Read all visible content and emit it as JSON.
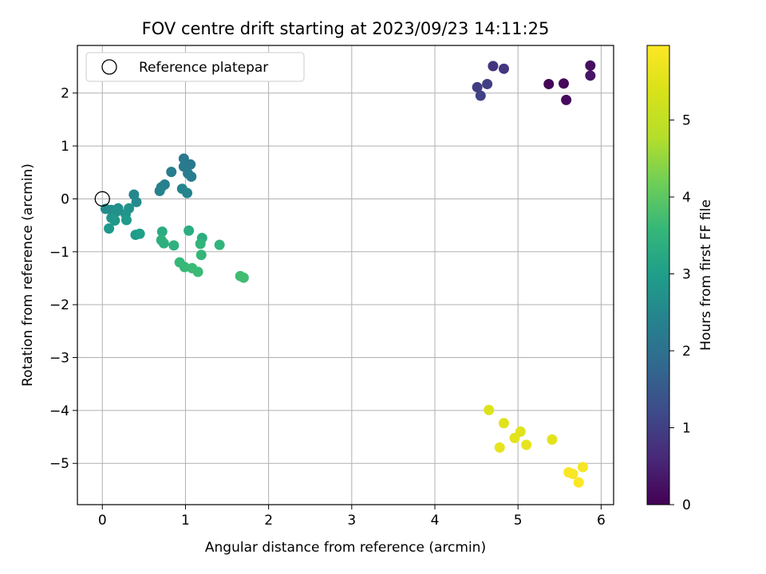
{
  "chart_data": {
    "type": "scatter",
    "title": "FOV centre drift starting at 2023/09/23 14:11:25",
    "xlabel": "Angular distance from reference (arcmin)",
    "ylabel": "Rotation from reference (arcmin)",
    "xlim": [
      -0.3,
      6.15
    ],
    "ylim": [
      -5.78,
      2.9
    ],
    "xticks": [
      0,
      1,
      2,
      3,
      4,
      5,
      6
    ],
    "xtick_labels": [
      "0",
      "1",
      "2",
      "3",
      "4",
      "5",
      "6"
    ],
    "yticks": [
      2,
      1,
      0,
      -1,
      -2,
      -3,
      -4,
      -5
    ],
    "ytick_labels": [
      "2",
      "1",
      "0",
      "−1",
      "−2",
      "−3",
      "−4",
      "−5"
    ],
    "grid": true,
    "legend": {
      "placement": "upper-left",
      "entries": [
        {
          "label": "Reference platepar",
          "marker": "open-circle"
        }
      ]
    },
    "reference_point": {
      "x": 0,
      "y": 0
    },
    "colorbar": {
      "label": "Hours from first FF file",
      "colormap": "viridis",
      "range": [
        0,
        5.97
      ],
      "ticks": [
        0,
        1,
        2,
        3,
        4,
        5
      ],
      "tick_labels": [
        "0",
        "1",
        "2",
        "3",
        "4",
        "5"
      ]
    },
    "points": [
      {
        "x": 5.37,
        "y": 2.17,
        "c": 0.05
      },
      {
        "x": 5.55,
        "y": 2.18,
        "c": 0.1
      },
      {
        "x": 5.58,
        "y": 1.87,
        "c": 0.15
      },
      {
        "x": 5.87,
        "y": 2.52,
        "c": 0.2
      },
      {
        "x": 5.87,
        "y": 2.33,
        "c": 0.3
      },
      {
        "x": 4.7,
        "y": 2.51,
        "c": 0.8
      },
      {
        "x": 4.83,
        "y": 2.46,
        "c": 0.85
      },
      {
        "x": 4.51,
        "y": 2.11,
        "c": 0.95
      },
      {
        "x": 4.63,
        "y": 2.17,
        "c": 1.0
      },
      {
        "x": 4.55,
        "y": 1.95,
        "c": 1.05
      },
      {
        "x": 0.98,
        "y": 0.76,
        "c": 2.15
      },
      {
        "x": 1.06,
        "y": 0.65,
        "c": 2.2
      },
      {
        "x": 0.98,
        "y": 0.61,
        "c": 2.2
      },
      {
        "x": 1.03,
        "y": 0.48,
        "c": 2.25
      },
      {
        "x": 1.07,
        "y": 0.42,
        "c": 2.25
      },
      {
        "x": 0.83,
        "y": 0.51,
        "c": 2.3
      },
      {
        "x": 0.75,
        "y": 0.27,
        "c": 2.35
      },
      {
        "x": 0.71,
        "y": 0.22,
        "c": 2.35
      },
      {
        "x": 0.69,
        "y": 0.15,
        "c": 2.4
      },
      {
        "x": 0.96,
        "y": 0.19,
        "c": 2.4
      },
      {
        "x": 1.02,
        "y": 0.11,
        "c": 2.45
      },
      {
        "x": 0.38,
        "y": 0.08,
        "c": 2.5
      },
      {
        "x": 0.41,
        "y": -0.06,
        "c": 2.55
      },
      {
        "x": 0.04,
        "y": -0.19,
        "c": 2.6
      },
      {
        "x": 0.11,
        "y": -0.21,
        "c": 2.6
      },
      {
        "x": 0.19,
        "y": -0.18,
        "c": 2.65
      },
      {
        "x": 0.17,
        "y": -0.24,
        "c": 2.7
      },
      {
        "x": 0.32,
        "y": -0.18,
        "c": 2.75
      },
      {
        "x": 0.28,
        "y": -0.29,
        "c": 2.8
      },
      {
        "x": 0.11,
        "y": -0.36,
        "c": 2.8
      },
      {
        "x": 0.15,
        "y": -0.41,
        "c": 2.85
      },
      {
        "x": 0.29,
        "y": -0.4,
        "c": 2.9
      },
      {
        "x": 0.08,
        "y": -0.56,
        "c": 2.9
      },
      {
        "x": 0.4,
        "y": -0.68,
        "c": 2.95
      },
      {
        "x": 0.45,
        "y": -0.66,
        "c": 3.0
      },
      {
        "x": 0.72,
        "y": -0.62,
        "c": 3.3
      },
      {
        "x": 1.04,
        "y": -0.6,
        "c": 3.35
      },
      {
        "x": 1.2,
        "y": -0.74,
        "c": 3.35
      },
      {
        "x": 0.71,
        "y": -0.78,
        "c": 3.4
      },
      {
        "x": 0.74,
        "y": -0.84,
        "c": 3.4
      },
      {
        "x": 0.86,
        "y": -0.88,
        "c": 3.45
      },
      {
        "x": 1.18,
        "y": -0.85,
        "c": 3.5
      },
      {
        "x": 1.41,
        "y": -0.87,
        "c": 3.5
      },
      {
        "x": 1.19,
        "y": -1.06,
        "c": 3.55
      },
      {
        "x": 0.93,
        "y": -1.2,
        "c": 3.6
      },
      {
        "x": 0.99,
        "y": -1.29,
        "c": 3.6
      },
      {
        "x": 1.08,
        "y": -1.31,
        "c": 3.65
      },
      {
        "x": 1.15,
        "y": -1.38,
        "c": 3.65
      },
      {
        "x": 1.66,
        "y": -1.46,
        "c": 3.7
      },
      {
        "x": 1.7,
        "y": -1.49,
        "c": 3.7
      },
      {
        "x": 4.65,
        "y": -3.99,
        "c": 5.45
      },
      {
        "x": 4.83,
        "y": -4.24,
        "c": 5.5
      },
      {
        "x": 5.03,
        "y": -4.4,
        "c": 5.5
      },
      {
        "x": 4.96,
        "y": -4.52,
        "c": 5.55
      },
      {
        "x": 5.41,
        "y": -4.55,
        "c": 5.55
      },
      {
        "x": 4.78,
        "y": -4.7,
        "c": 5.6
      },
      {
        "x": 5.1,
        "y": -4.65,
        "c": 5.6
      },
      {
        "x": 5.78,
        "y": -5.07,
        "c": 5.85
      },
      {
        "x": 5.61,
        "y": -5.17,
        "c": 5.9
      },
      {
        "x": 5.66,
        "y": -5.2,
        "c": 5.9
      },
      {
        "x": 5.73,
        "y": -5.36,
        "c": 5.95
      }
    ]
  }
}
